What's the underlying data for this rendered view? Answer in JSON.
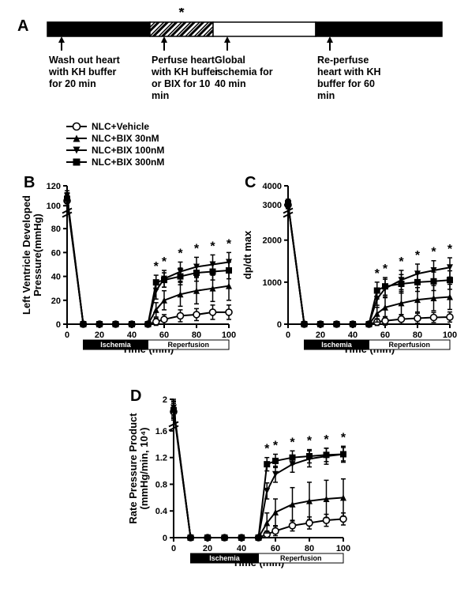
{
  "panelA": {
    "label": "A",
    "segments": [
      {
        "label": "Wash out heart with KH buffer for 20 min",
        "fill": "#000",
        "w": 130
      },
      {
        "label": "Perfuse heart with KH buffer or BIX for 10 min",
        "fill": "hatch",
        "w": 80,
        "hasStar": true
      },
      {
        "label": "Global ischemia for 40 min",
        "fill": "#fff",
        "w": 130
      },
      {
        "label": "Re-perfuse heart with KH buffer for 60 min",
        "fill": "#000",
        "w": 160
      }
    ],
    "star": "*"
  },
  "legend": {
    "items": [
      {
        "label": "NLC+Vehicle",
        "marker": "open-circle"
      },
      {
        "label": "NLC+BIX 30nM",
        "marker": "filled-triangle-up"
      },
      {
        "label": "NLC+BIX 100nM",
        "marker": "filled-triangle-down"
      },
      {
        "label": "NLC+BIX 300nM",
        "marker": "filled-square"
      }
    ]
  },
  "panelB": {
    "label": "B",
    "ylabel": "Left Ventricle Developed Pressure(mmHg)",
    "xlabel": "Time (min)",
    "xlim": [
      0,
      100
    ],
    "xticks": [
      0,
      20,
      40,
      60,
      80,
      100
    ],
    "ylim": [
      0,
      120
    ],
    "yticks": [
      0,
      20,
      40,
      60,
      80,
      100,
      120
    ],
    "breakY": true,
    "breakAt": 95,
    "phases": [
      {
        "label": "Ischemia",
        "from": 10,
        "to": 50,
        "fill": "#000",
        "textColor": "#fff"
      },
      {
        "label": "Reperfusion",
        "from": 50,
        "to": 100,
        "fill": "#fff",
        "textColor": "#000"
      }
    ],
    "xpoints": [
      0,
      10,
      20,
      30,
      40,
      50,
      55,
      60,
      70,
      80,
      90,
      100
    ],
    "series": {
      "vehicle": {
        "y": [
          105,
          0,
          0,
          0,
          0,
          0,
          2,
          4,
          7,
          8,
          10,
          10
        ],
        "err": [
          5,
          0,
          0,
          0,
          0,
          0,
          3,
          4,
          5,
          5,
          6,
          6
        ]
      },
      "bix30": {
        "y": [
          108,
          0,
          0,
          0,
          0,
          0,
          12,
          20,
          25,
          28,
          30,
          32
        ],
        "err": [
          5,
          0,
          0,
          0,
          0,
          0,
          6,
          8,
          10,
          11,
          11,
          12
        ]
      },
      "bix100": {
        "y": [
          110,
          0,
          0,
          0,
          0,
          0,
          28,
          38,
          44,
          48,
          50,
          52
        ],
        "err": [
          5,
          0,
          0,
          0,
          0,
          0,
          7,
          7,
          8,
          8,
          8,
          8
        ]
      },
      "bix300": {
        "y": [
          107,
          0,
          0,
          0,
          0,
          0,
          35,
          37,
          40,
          43,
          44,
          45
        ],
        "err": [
          5,
          0,
          0,
          0,
          0,
          0,
          6,
          6,
          7,
          7,
          7,
          7
        ]
      }
    },
    "sigX": [
      55,
      60,
      70,
      80,
      90,
      100
    ]
  },
  "panelC": {
    "label": "C",
    "ylabel": "dp/dt max",
    "xlabel": "Time (min)",
    "xlim": [
      0,
      100
    ],
    "xticks": [
      0,
      20,
      40,
      60,
      80,
      100
    ],
    "ylim": [
      0,
      4000
    ],
    "yticks": [
      0,
      1000,
      2000,
      3000,
      4000
    ],
    "breakY": true,
    "breakAt": 2700,
    "phases": [
      {
        "label": "Ischemia",
        "from": 10,
        "to": 50,
        "fill": "#000",
        "textColor": "#fff"
      },
      {
        "label": "Reperfusion",
        "from": 50,
        "to": 100,
        "fill": "#fff",
        "textColor": "#000"
      }
    ],
    "xpoints": [
      0,
      10,
      20,
      30,
      40,
      50,
      55,
      60,
      70,
      80,
      90,
      100
    ],
    "series": {
      "vehicle": {
        "y": [
          3000,
          0,
          0,
          0,
          0,
          0,
          50,
          80,
          120,
          140,
          160,
          170
        ],
        "err": [
          200,
          0,
          0,
          0,
          0,
          0,
          80,
          100,
          110,
          120,
          120,
          120
        ]
      },
      "bix30": {
        "y": [
          3050,
          0,
          0,
          0,
          0,
          0,
          250,
          400,
          500,
          580,
          620,
          650
        ],
        "err": [
          200,
          0,
          0,
          0,
          0,
          0,
          200,
          250,
          280,
          290,
          300,
          300
        ]
      },
      "bix100": {
        "y": [
          3100,
          0,
          0,
          0,
          0,
          0,
          600,
          850,
          1050,
          1200,
          1280,
          1350
        ],
        "err": [
          200,
          0,
          0,
          0,
          0,
          0,
          200,
          220,
          230,
          230,
          230,
          230
        ]
      },
      "bix300": {
        "y": [
          3080,
          0,
          0,
          0,
          0,
          0,
          800,
          900,
          960,
          1000,
          1020,
          1050
        ],
        "err": [
          200,
          0,
          0,
          0,
          0,
          0,
          200,
          210,
          220,
          220,
          220,
          220
        ]
      }
    },
    "sigX": [
      55,
      60,
      70,
      80,
      90,
      100
    ]
  },
  "panelD": {
    "label": "D",
    "ylabel": "Rate Pressure Product (mmHg/min, 10⁴)",
    "xlabel": "Time (min)",
    "xlim": [
      0,
      100
    ],
    "xticks": [
      0,
      20,
      40,
      60,
      80,
      100
    ],
    "ylim": [
      0,
      2.0
    ],
    "yticks": [
      0,
      0.4,
      0.8,
      1.2,
      1.6,
      2.0
    ],
    "breakY": true,
    "breakAt": 1.7,
    "phases": [
      {
        "label": "Ischemia",
        "from": 10,
        "to": 50,
        "fill": "#000",
        "textColor": "#fff"
      },
      {
        "label": "Reperfusion",
        "from": 50,
        "to": 100,
        "fill": "#fff",
        "textColor": "#000"
      }
    ],
    "xpoints": [
      0,
      10,
      20,
      30,
      40,
      50,
      55,
      60,
      70,
      80,
      90,
      100
    ],
    "series": {
      "vehicle": {
        "y": [
          1.85,
          0,
          0,
          0,
          0,
          0,
          0.05,
          0.1,
          0.18,
          0.22,
          0.26,
          0.28
        ],
        "err": [
          0.1,
          0,
          0,
          0,
          0,
          0,
          0.05,
          0.07,
          0.08,
          0.09,
          0.09,
          0.09
        ]
      },
      "bix30": {
        "y": [
          1.88,
          0,
          0,
          0,
          0,
          0,
          0.22,
          0.38,
          0.5,
          0.55,
          0.58,
          0.6
        ],
        "err": [
          0.1,
          0,
          0,
          0,
          0,
          0,
          0.15,
          0.2,
          0.25,
          0.28,
          0.28,
          0.28
        ]
      },
      "bix100": {
        "y": [
          1.9,
          0,
          0,
          0,
          0,
          0,
          0.7,
          0.95,
          1.1,
          1.18,
          1.22,
          1.25
        ],
        "err": [
          0.1,
          0,
          0,
          0,
          0,
          0,
          0.12,
          0.12,
          0.12,
          0.12,
          0.12,
          0.12
        ]
      },
      "bix300": {
        "y": [
          1.87,
          0,
          0,
          0,
          0,
          0,
          1.1,
          1.15,
          1.2,
          1.22,
          1.24,
          1.25
        ],
        "err": [
          0.1,
          0,
          0,
          0,
          0,
          0,
          0.1,
          0.1,
          0.1,
          0.1,
          0.1,
          0.1
        ]
      }
    },
    "sigX": [
      55,
      60,
      70,
      80,
      90,
      100
    ]
  },
  "colors": {
    "stroke": "#000",
    "bg": "#fff"
  },
  "fonts": {
    "axis": 12,
    "label": 13,
    "panel": 20,
    "legend": 12,
    "phase": 11
  }
}
